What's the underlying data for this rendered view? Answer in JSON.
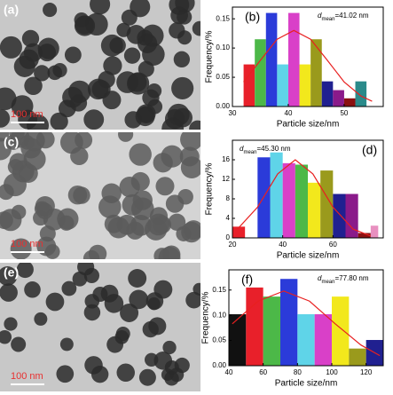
{
  "images": [
    {
      "label": "(a)",
      "scale_bar": "100 nm"
    },
    {
      "label": "(c)",
      "scale_bar": "100 nm"
    },
    {
      "label": "(e)",
      "scale_bar": "100 nm"
    }
  ],
  "chart_data": [
    {
      "type": "histogram",
      "panel_label": "(b)",
      "annotation": {
        "symbol": "d",
        "subscript": "mean",
        "text": "=41.02 nm"
      },
      "x_label": "Particle size/nm",
      "y_label": "Frequency/%",
      "bins": [
        32,
        34,
        36,
        38,
        40,
        42,
        44,
        46,
        48,
        50,
        52,
        54
      ],
      "values": [
        0.072,
        0.115,
        0.16,
        0.072,
        0.16,
        0.072,
        0.115,
        0.043,
        0.028,
        0.014,
        0.043
      ],
      "colors": [
        "#e8202a",
        "#4cb848",
        "#2b3bd9",
        "#5fd4e8",
        "#d940c8",
        "#f2e81c",
        "#9a9a1c",
        "#202090",
        "#8a1a8a",
        "#8a1010",
        "#2a8a8a"
      ],
      "fit": {
        "x": [
          32,
          35,
          38,
          41,
          44,
          47,
          50,
          53,
          55
        ],
        "y": [
          0.042,
          0.079,
          0.115,
          0.13,
          0.115,
          0.079,
          0.042,
          0.018,
          0.009
        ]
      },
      "fit_color": "#e82020",
      "xlim": [
        30,
        57
      ],
      "xticks": [
        30,
        40,
        50
      ],
      "ylim": [
        0,
        0.17
      ],
      "yticks": [
        {
          "value": 0,
          "label": "0.00"
        },
        0.05,
        {
          "value": 0.1,
          "label": "0.10"
        },
        0.15
      ]
    },
    {
      "type": "histogram",
      "panel_label": "(d)",
      "annotation": {
        "symbol": "d",
        "subscript": "mean",
        "text": "=45.30 nm"
      },
      "x_label": "Particle size/nm",
      "y_label": "Frequency/%",
      "bins": [
        20,
        25,
        30,
        35,
        40,
        45,
        50,
        55,
        60,
        65,
        70,
        75,
        78
      ],
      "values": [
        2.3,
        0,
        16.5,
        17.5,
        15.3,
        15,
        11.3,
        13.8,
        9,
        9,
        1,
        2.5
      ],
      "colors": [
        "#e8202a",
        "#ffffff",
        "#2b3bd9",
        "#5fd4e8",
        "#d940c8",
        "#4cb848",
        "#f2e81c",
        "#9a9a1c",
        "#202090",
        "#8a1a8a",
        "#8a1010",
        "#e890c0"
      ],
      "fit": {
        "x": [
          22,
          30,
          38,
          45,
          52,
          60,
          68,
          75
        ],
        "y": [
          1.8,
          6.3,
          13.1,
          16,
          13.1,
          6.3,
          1.8,
          0.4
        ]
      },
      "fit_color": "#e82020",
      "xlim": [
        20,
        80
      ],
      "xticks": [
        20,
        40,
        60
      ],
      "ylim": [
        0,
        20
      ],
      "yticks": [
        0,
        4,
        8,
        12,
        16
      ]
    },
    {
      "type": "histogram",
      "panel_label": "(f)",
      "annotation": {
        "symbol": "d",
        "subscript": "mean",
        "text": "=77.80 nm"
      },
      "x_label": "Particle size/nm",
      "y_label": "Frequency/%",
      "bins": [
        40,
        50,
        60,
        70,
        80,
        90,
        100,
        110,
        120,
        130
      ],
      "values": [
        0.102,
        0.155,
        0.137,
        0.172,
        0.102,
        0.102,
        0.137,
        0.034,
        0.051
      ],
      "colors": [
        "#111111",
        "#e8202a",
        "#4cb848",
        "#2b3bd9",
        "#5fd4e8",
        "#d940c8",
        "#f2e81c",
        "#9a9a1c",
        "#202090"
      ],
      "fit": {
        "x": [
          42,
          57,
          72,
          87,
          102,
          117,
          128
        ],
        "y": [
          0.083,
          0.128,
          0.148,
          0.128,
          0.083,
          0.041,
          0.02
        ]
      },
      "fit_color": "#e82020",
      "xlim": [
        40,
        130
      ],
      "xticks": [
        40,
        60,
        80,
        100,
        120
      ],
      "ylim": [
        0,
        0.19
      ],
      "yticks": [
        {
          "value": 0,
          "label": "0.00"
        },
        0.05,
        {
          "value": 0.1,
          "label": "0.10"
        },
        0.15
      ]
    }
  ]
}
